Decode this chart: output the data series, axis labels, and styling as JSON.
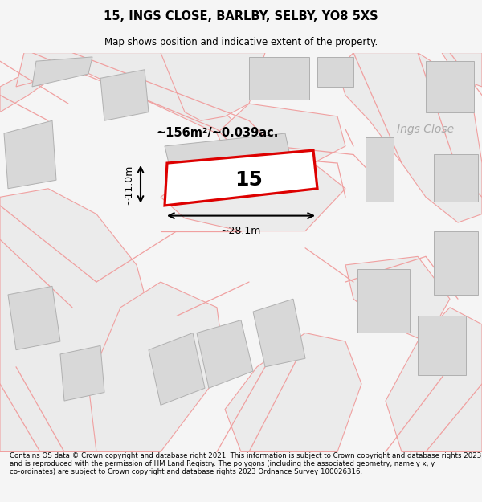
{
  "title": "15, INGS CLOSE, BARLBY, SELBY, YO8 5XS",
  "subtitle": "Map shows position and indicative extent of the property.",
  "footer": "Contains OS data © Crown copyright and database right 2021. This information is subject to Crown copyright and database rights 2023 and is reproduced with the permission of HM Land Registry. The polygons (including the associated geometry, namely x, y co-ordinates) are subject to Crown copyright and database rights 2023 Ordnance Survey 100026316.",
  "area_label": "~156m²/~0.039ac.",
  "number_label": "15",
  "width_label": "~28.1m",
  "height_label": "~11.0m",
  "street_label": "Ings Close",
  "red_color": "#dd0000",
  "gray_building": "#d8d8d8",
  "gray_building_edge": "#b0b0b0",
  "road_fill": "#ebebeb",
  "road_edge": "#f0a0a0",
  "bg_color": "#ffffff"
}
